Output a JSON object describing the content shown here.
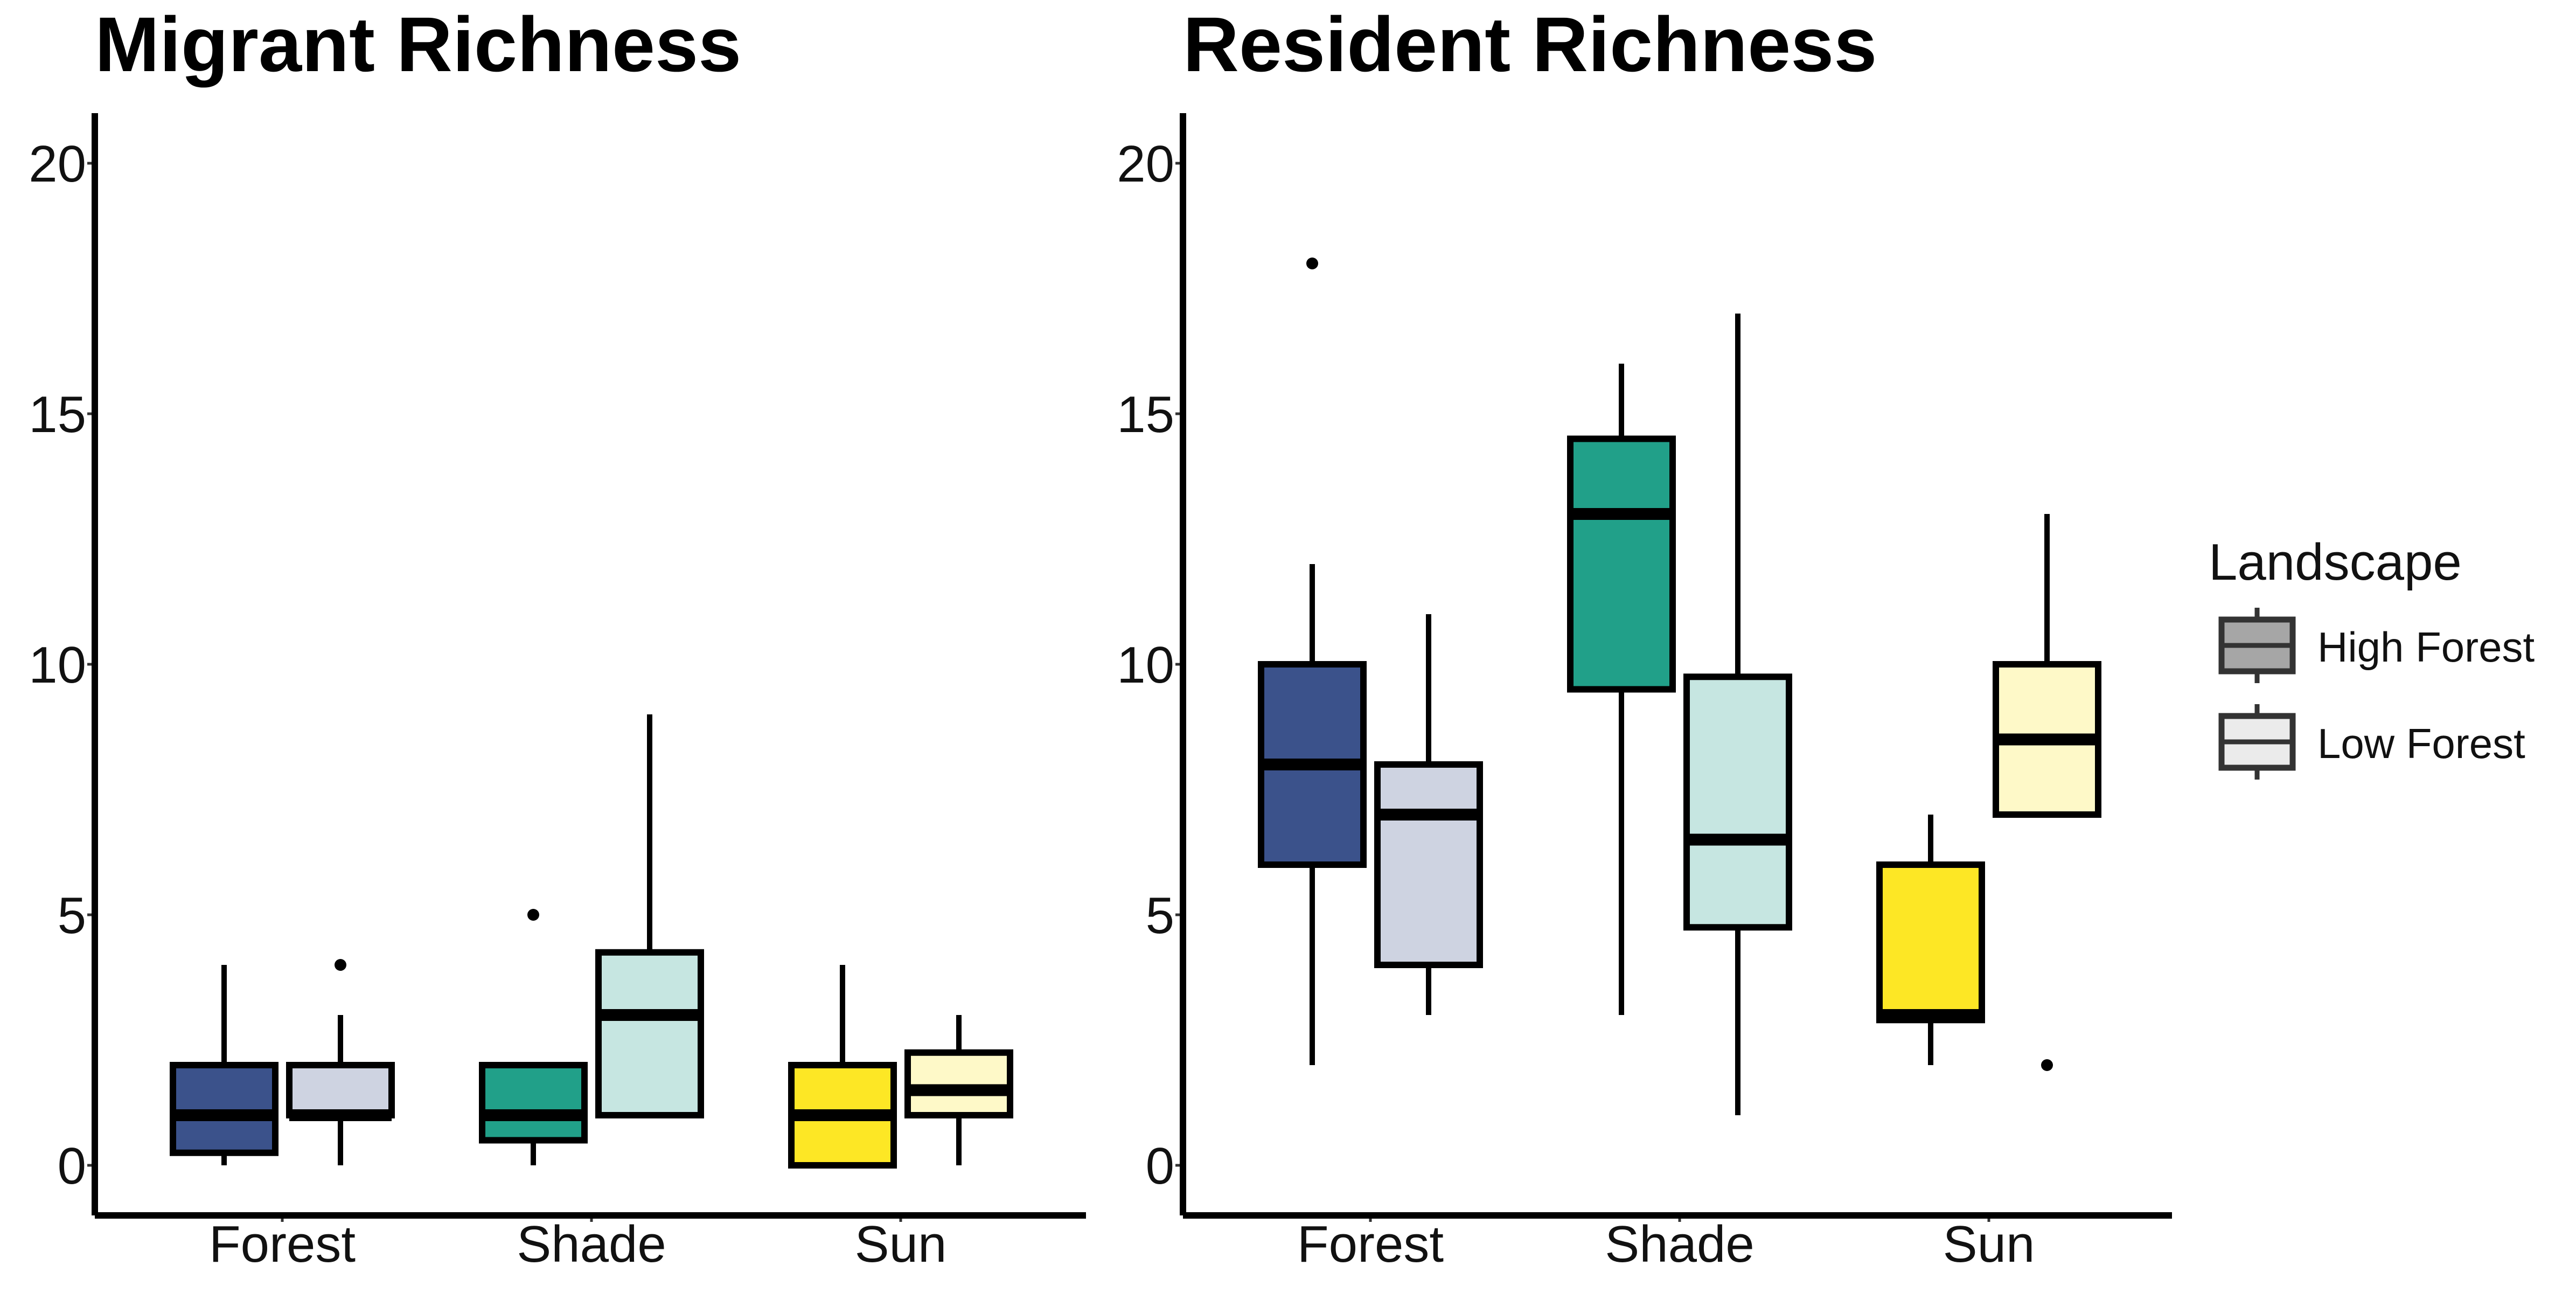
{
  "legend": {
    "title": "Landscape",
    "items": [
      {
        "label": "High Forest",
        "color": "#A6A6A6"
      },
      {
        "label": "Low Forest",
        "color": "#EBEBEB"
      }
    ]
  },
  "chart_data": [
    {
      "type": "boxplot",
      "title": "Migrant Richness",
      "xlabel": "",
      "ylabel": "",
      "categories": [
        "Forest",
        "Shade",
        "Sun"
      ],
      "ylim": [
        -1,
        21
      ],
      "yticks": [
        0,
        5,
        10,
        15,
        20
      ],
      "grid": false,
      "series": [
        {
          "name": "High Forest",
          "boxes": [
            {
              "category": "Forest",
              "min": 0,
              "q1": 0.25,
              "median": 1,
              "q3": 2,
              "max": 4,
              "outliers": [],
              "color": "#3B528B"
            },
            {
              "category": "Shade",
              "min": 0,
              "q1": 0.5,
              "median": 1,
              "q3": 2,
              "max": 2,
              "outliers": [
                5
              ],
              "color": "#21A089"
            },
            {
              "category": "Sun",
              "min": 0,
              "q1": 0,
              "median": 1,
              "q3": 2,
              "max": 4,
              "outliers": [],
              "color": "#FDE725"
            }
          ]
        },
        {
          "name": "Low Forest",
          "boxes": [
            {
              "category": "Forest",
              "min": 0,
              "q1": 1,
              "median": 1,
              "q3": 2,
              "max": 3,
              "outliers": [
                4
              ],
              "color": "#CED3E1"
            },
            {
              "category": "Shade",
              "min": 1,
              "q1": 1,
              "median": 3,
              "q3": 4.25,
              "max": 9,
              "outliers": [],
              "color": "#C6E6E1"
            },
            {
              "category": "Sun",
              "min": 0,
              "q1": 1,
              "median": 1.5,
              "q3": 2.25,
              "max": 3,
              "outliers": [],
              "color": "#FEF9C8"
            }
          ]
        }
      ]
    },
    {
      "type": "boxplot",
      "title": "Resident Richness",
      "xlabel": "",
      "ylabel": "",
      "categories": [
        "Forest",
        "Shade",
        "Sun"
      ],
      "ylim": [
        -1,
        21
      ],
      "yticks": [
        0,
        5,
        10,
        15,
        20
      ],
      "grid": false,
      "series": [
        {
          "name": "High Forest",
          "boxes": [
            {
              "category": "Forest",
              "min": 2,
              "q1": 6,
              "median": 8,
              "q3": 10,
              "max": 12,
              "outliers": [
                18
              ],
              "color": "#3B528B"
            },
            {
              "category": "Shade",
              "min": 3,
              "q1": 9.5,
              "median": 13,
              "q3": 14.5,
              "max": 16,
              "outliers": [],
              "color": "#21A089"
            },
            {
              "category": "Sun",
              "min": 2,
              "q1": 2.9,
              "median": 3,
              "q3": 6,
              "max": 7,
              "outliers": [],
              "color": "#FDE725"
            }
          ]
        },
        {
          "name": "Low Forest",
          "boxes": [
            {
              "category": "Forest",
              "min": 3,
              "q1": 4,
              "median": 7,
              "q3": 8,
              "max": 11,
              "outliers": [],
              "color": "#CED3E1"
            },
            {
              "category": "Shade",
              "min": 1,
              "q1": 4.75,
              "median": 6.5,
              "q3": 9.75,
              "max": 17,
              "outliers": [],
              "color": "#C6E6E1"
            },
            {
              "category": "Sun",
              "min": 7,
              "q1": 7,
              "median": 8.5,
              "q3": 10,
              "max": 13,
              "outliers": [
                2
              ],
              "color": "#FEF9C8"
            }
          ]
        }
      ]
    }
  ]
}
